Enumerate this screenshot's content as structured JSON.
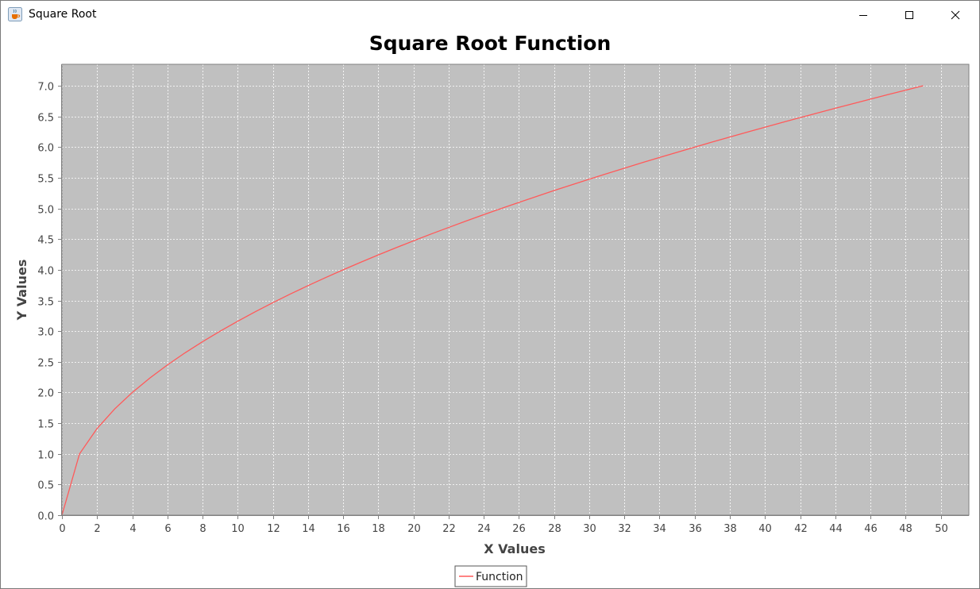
{
  "window": {
    "title": "Square Root",
    "app_icon": "java-cup-icon",
    "controls": [
      "minimize-icon",
      "maximize-icon",
      "close-icon"
    ]
  },
  "colors": {
    "plot_background": "#c0c0c0",
    "gridline": "#ffffff",
    "series_line": "#ff5a5a",
    "axis": "#808080"
  },
  "chart_data": {
    "type": "line",
    "title": "Square Root Function",
    "xlabel": "X Values",
    "ylabel": "Y Values",
    "xlim": [
      0,
      51.6
    ],
    "ylim": [
      0,
      7.35
    ],
    "x_ticks": [
      0,
      2,
      4,
      6,
      8,
      10,
      12,
      14,
      16,
      18,
      20,
      22,
      24,
      26,
      28,
      30,
      32,
      34,
      36,
      38,
      40,
      42,
      44,
      46,
      48,
      50
    ],
    "y_ticks": [
      "0.0",
      "0.5",
      "1.0",
      "1.5",
      "2.0",
      "2.5",
      "3.0",
      "3.5",
      "4.0",
      "4.5",
      "5.0",
      "5.5",
      "6.0",
      "6.5",
      "7.0"
    ],
    "grid": true,
    "legend_position": "bottom",
    "series": [
      {
        "name": "Function",
        "x": [
          0,
          1,
          2,
          3,
          4,
          5,
          6,
          7,
          8,
          9,
          10,
          11,
          12,
          13,
          14,
          15,
          16,
          17,
          18,
          19,
          20,
          21,
          22,
          23,
          24,
          25,
          26,
          27,
          28,
          29,
          30,
          31,
          32,
          33,
          34,
          35,
          36,
          37,
          38,
          39,
          40,
          41,
          42,
          43,
          44,
          45,
          46,
          47,
          48,
          49
        ],
        "y": [
          0.0,
          1.0,
          1.414,
          1.732,
          2.0,
          2.236,
          2.449,
          2.646,
          2.828,
          3.0,
          3.162,
          3.317,
          3.464,
          3.606,
          3.742,
          3.873,
          4.0,
          4.123,
          4.243,
          4.359,
          4.472,
          4.583,
          4.69,
          4.796,
          4.899,
          5.0,
          5.099,
          5.196,
          5.292,
          5.385,
          5.477,
          5.568,
          5.657,
          5.745,
          5.831,
          5.916,
          6.0,
          6.083,
          6.164,
          6.245,
          6.325,
          6.403,
          6.481,
          6.557,
          6.633,
          6.708,
          6.782,
          6.856,
          6.928,
          7.0
        ]
      }
    ]
  }
}
